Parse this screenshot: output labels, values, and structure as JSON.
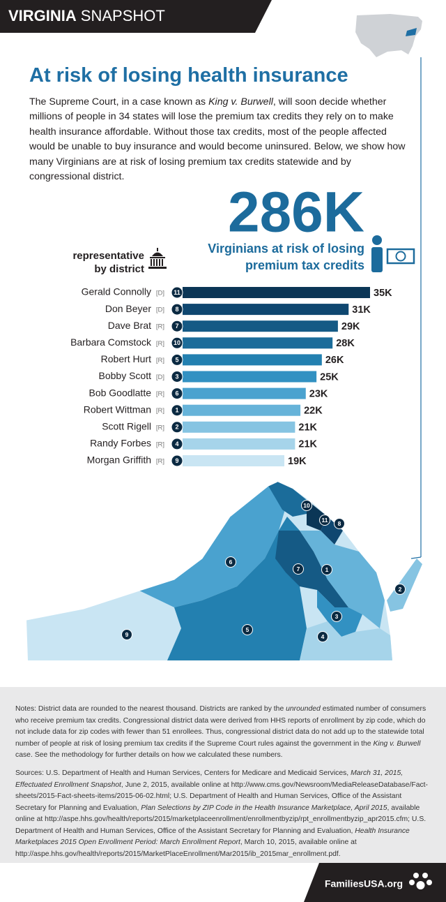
{
  "header": {
    "state": "VIRGINIA",
    "label": "SNAPSHOT"
  },
  "title": "At risk of losing health insurance",
  "intro": [
    "The Supreme Court, in a case known as ",
    {
      "text": "King v. Burwell",
      "italic": true
    },
    ", will soon decide whether millions of people in 34 states will lose the premium tax credits they rely on to make health insurance affordable. Without those tax credits, most of the people affected would be unable to buy insurance and would become uninsured. Below, we show how many Virginians are at risk of losing premium tax credits statewide and by congressional district."
  ],
  "headline": {
    "number": "286K",
    "text_lines": [
      "Virginians at risk of losing",
      "premium tax credits"
    ]
  },
  "chart_data": {
    "type": "bar",
    "orientation": "horizontal",
    "label_lines": [
      "representative",
      "by district"
    ],
    "categories": [
      "Gerald Connolly",
      "Don Beyer",
      "Dave Brat",
      "Barbara Comstock",
      "Robert Hurt",
      "Bobby Scott",
      "Bob Goodlatte",
      "Robert Wittman",
      "Scott Rigell",
      "Randy Forbes",
      "Morgan Griffith"
    ],
    "parties": [
      "[D]",
      "[D]",
      "[R]",
      "[R]",
      "[R]",
      "[D]",
      "[R]",
      "[R]",
      "[R]",
      "[R]",
      "[R]"
    ],
    "districts": [
      "11",
      "8",
      "7",
      "10",
      "5",
      "3",
      "6",
      "1",
      "2",
      "4",
      "9"
    ],
    "values": [
      35000,
      31000,
      29000,
      28000,
      26000,
      25000,
      23000,
      22000,
      21000,
      21000,
      19000
    ],
    "value_labels": [
      "35K",
      "31K",
      "29K",
      "28K",
      "26K",
      "25K",
      "23K",
      "22K",
      "21K",
      "21K",
      "19K"
    ],
    "colors": [
      "#0b3656",
      "#0f4770",
      "#155a85",
      "#1b6c9a",
      "#2380b0",
      "#3291c2",
      "#4aa2cf",
      "#66b3d9",
      "#86c4e2",
      "#a6d4ea",
      "#c9e5f3"
    ],
    "xlim": [
      0,
      35000
    ]
  },
  "map": {
    "markers": [
      "10",
      "11",
      "8",
      "6",
      "7",
      "1",
      "2",
      "3",
      "5",
      "9",
      "4"
    ]
  },
  "notes": [
    "Notes: District data are rounded to the nearest thousand. Districts are ranked by the ",
    {
      "text": "unrounded",
      "italic": true
    },
    " estimated number of consumers who receive premium tax credits. Congressional district data were derived from HHS reports of enrollment by zip code, which do not include data for zip codes with fewer than 51 enrollees. Thus, congressional district data do not add up to the statewide total number of people at risk of losing premium tax credits if the Supreme Court rules against the government in the ",
    {
      "text": "King v. Burwell",
      "italic": true
    },
    " case. See the methodology for further details on how we calculated these numbers."
  ],
  "sources": [
    "Sources: U.S. Department of Health and Human Services, Centers for Medicare and Medicaid Services, ",
    {
      "text": "March 31, 2015, Effectuated Enrollment Snapshot",
      "italic": true
    },
    ", June 2, 2015, available online at http://www.cms.gov/Newsroom/MediaReleaseDatabase/Fact-sheets/2015-Fact-sheets-items/2015-06-02.html; U.S. Department of Health and Human Services, Office of the Assistant Secretary for Planning and Evaluation, ",
    {
      "text": "Plan Selections by ZIP Code in the Health Insurance Marketplace, April 2015",
      "italic": true
    },
    ", available online at http://aspe.hhs.gov/health/reports/2015/marketplaceenrollment/enrollmentbyzip/rpt_enrollmentbyzip_apr2015.cfm; U.S. Department of Health and Human Services, Office of the Assistant Secretary for Planning and Evaluation, ",
    {
      "text": "Health Insurance Marketplaces 2015 Open Enrollment Period: March Enrollment Report",
      "italic": true
    },
    ", March 10, 2015, available online at http://aspe.hhs.gov/health/reports/2015/MarketPlaceEnrollment/Mar2015/ib_2015mar_enrollment.pdf."
  ],
  "footer": "FamiliesUSA.org"
}
